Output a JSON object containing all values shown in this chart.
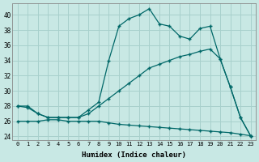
{
  "xlabel": "Humidex (Indice chaleur)",
  "background_color": "#c8e8e4",
  "grid_color": "#a8d0cc",
  "line_color": "#006868",
  "xlim": [
    -0.5,
    23.5
  ],
  "ylim": [
    23.5,
    41.5
  ],
  "yticks": [
    24,
    26,
    28,
    30,
    32,
    34,
    36,
    38,
    40
  ],
  "xticks": [
    0,
    1,
    2,
    3,
    4,
    5,
    6,
    7,
    8,
    9,
    10,
    11,
    12,
    13,
    14,
    15,
    16,
    17,
    18,
    19,
    20,
    21,
    22,
    23
  ],
  "curve1_x": [
    0,
    1,
    2,
    3,
    4,
    5,
    6,
    7,
    8,
    9,
    10,
    11,
    12,
    13,
    14,
    15,
    16,
    17,
    18,
    19,
    20,
    21,
    22,
    23
  ],
  "curve1_y": [
    26.0,
    26.0,
    26.0,
    26.2,
    26.2,
    26.0,
    26.0,
    26.0,
    26.0,
    25.8,
    25.6,
    25.5,
    25.4,
    25.3,
    25.2,
    25.1,
    25.0,
    24.9,
    24.8,
    24.7,
    24.6,
    24.5,
    24.3,
    24.1
  ],
  "curve2_x": [
    0,
    1,
    2,
    3,
    4,
    5,
    6,
    7,
    8,
    9,
    10,
    11,
    12,
    13,
    14,
    15,
    16,
    17,
    18,
    19,
    20,
    21,
    22,
    23
  ],
  "curve2_y": [
    28.0,
    28.0,
    27.0,
    26.5,
    26.5,
    26.5,
    26.5,
    27.0,
    28.0,
    29.0,
    30.0,
    31.0,
    32.0,
    33.0,
    33.5,
    34.0,
    34.5,
    34.8,
    35.2,
    35.5,
    34.2,
    30.5,
    26.5,
    24.1
  ],
  "curve3_x": [
    0,
    1,
    2,
    3,
    4,
    5,
    6,
    7,
    8,
    9,
    10,
    11,
    12,
    13,
    14,
    15,
    16,
    17,
    18,
    19,
    20,
    21,
    22,
    23
  ],
  "curve3_y": [
    28.0,
    27.8,
    27.0,
    26.5,
    26.5,
    26.5,
    26.5,
    27.5,
    28.5,
    34.0,
    38.5,
    39.5,
    40.0,
    40.8,
    38.8,
    38.5,
    37.2,
    36.8,
    38.2,
    38.5,
    34.2,
    30.5,
    26.5,
    24.1
  ]
}
